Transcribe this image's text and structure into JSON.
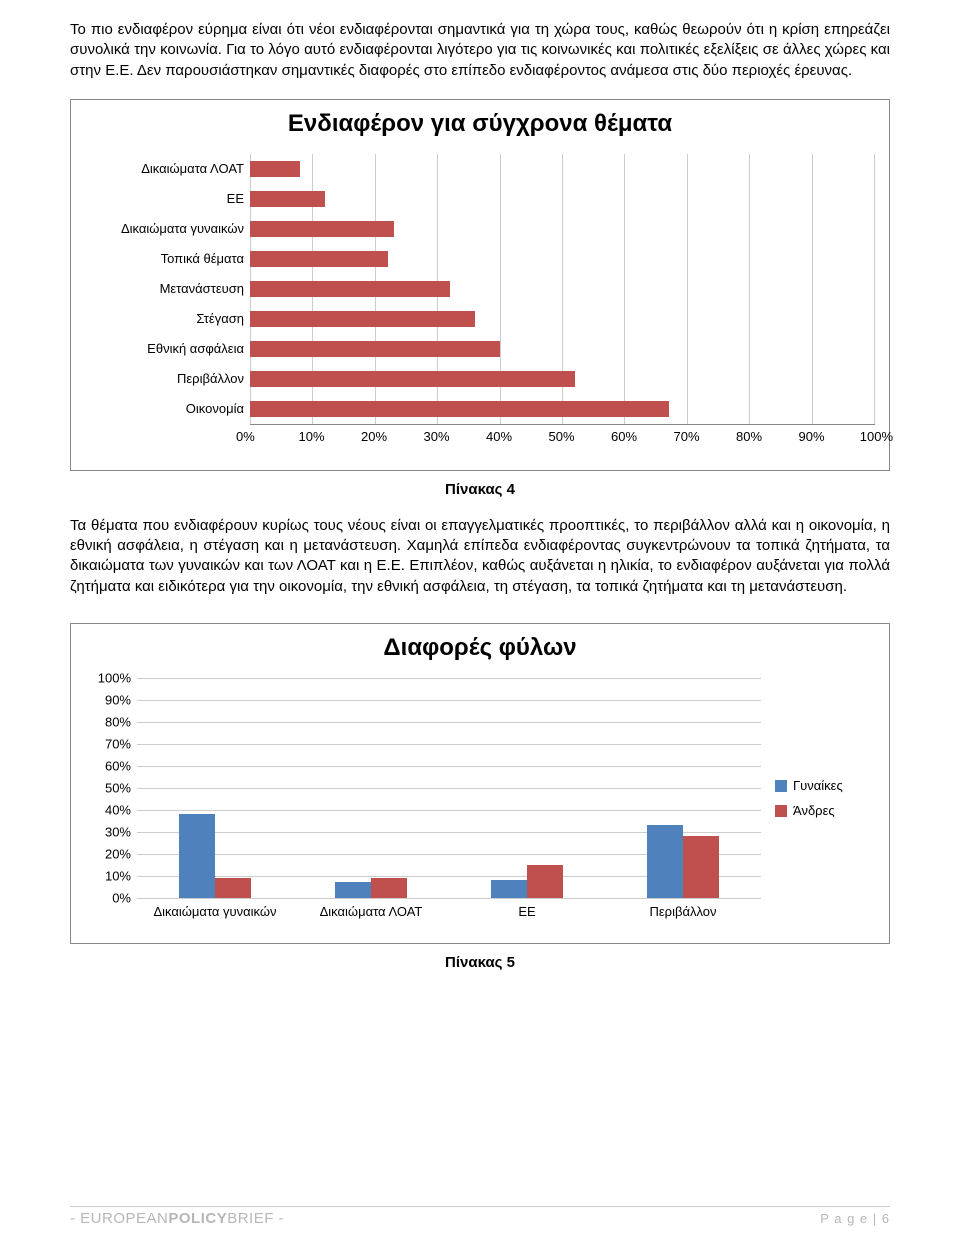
{
  "paragraph1": "Το πιο ενδιαφέρον εύρημα είναι ότι νέοι ενδιαφέρονται σημαντικά για τη χώρα τους, καθώς θεωρούν ότι η κρίση επηρεάζει συνολικά την κοινωνία. Για το λόγο αυτό ενδιαφέρονται λιγότερο για τις κοινωνικές και πολιτικές εξελίξεις σε άλλες χώρες και στην Ε.Ε. Δεν παρουσιάστηκαν σημαντικές διαφορές στο επίπεδο ενδιαφέροντος ανάμεσα στις δύο περιοχές έρευνας.",
  "chart1": {
    "title": "Ενδιαφέρον για σύγχρονα θέματα",
    "categories": [
      "Δικαιώματα ΛΟΑΤ",
      "ΕΕ",
      "Δικαιώματα γυναικών",
      "Τοπικά θέματα",
      "Μετανάστευση",
      "Στέγαση",
      "Εθνική ασφάλεια",
      "Περιβάλλον",
      "Οικονομία"
    ],
    "values": [
      8,
      12,
      23,
      22,
      32,
      36,
      40,
      52,
      67
    ],
    "bar_color": "#c0504d",
    "xticks": [
      "0%",
      "10%",
      "20%",
      "30%",
      "40%",
      "50%",
      "60%",
      "70%",
      "80%",
      "90%",
      "100%"
    ],
    "xmax": 100,
    "grid_color": "#cccccc",
    "label_fontsize": 13
  },
  "caption1": "Πίνακας 4",
  "paragraph2": "Τα θέματα που ενδιαφέρουν κυρίως τους νέους είναι οι επαγγελματικές προοπτικές, το περιβάλλον αλλά και η οικονομία, η εθνική ασφάλεια, η στέγαση και η μετανάστευση. Χαμηλά επίπεδα ενδιαφέροντας συγκεντρώνουν τα τοπικά ζητήματα, τα δικαιώματα των γυναικών και των ΛΟΑΤ και η Ε.Ε. Επιπλέον, καθώς αυξάνεται η ηλικία, το ενδιαφέρον αυξάνεται για πολλά ζητήματα και ειδικότερα για την οικονομία, την εθνική ασφάλεια, τη στέγαση, τα τοπικά ζητήματα και τη μετανάστευση.",
  "chart2": {
    "title": "Διαφορές φύλων",
    "categories": [
      "Δικαιώματα γυναικών",
      "Δικαιώματα ΛΟΑΤ",
      "ΕΕ",
      "Περιβάλλον"
    ],
    "series": [
      {
        "name": "Γυναίκες",
        "color": "#4f81bd",
        "values": [
          38,
          7,
          8,
          33
        ]
      },
      {
        "name": "Άνδρες",
        "color": "#c0504d",
        "values": [
          9,
          9,
          15,
          28
        ]
      }
    ],
    "yticks": [
      "0%",
      "10%",
      "20%",
      "30%",
      "40%",
      "50%",
      "60%",
      "70%",
      "80%",
      "90%",
      "100%"
    ],
    "ymax": 100,
    "grid_color": "#cccccc"
  },
  "caption2": "Πίνακας 5",
  "footer": {
    "brand_prefix": "- EUROPEAN",
    "brand_bold": "POLICY",
    "brand_suffix": "BRIEF -",
    "page": "P a g e | 6"
  }
}
